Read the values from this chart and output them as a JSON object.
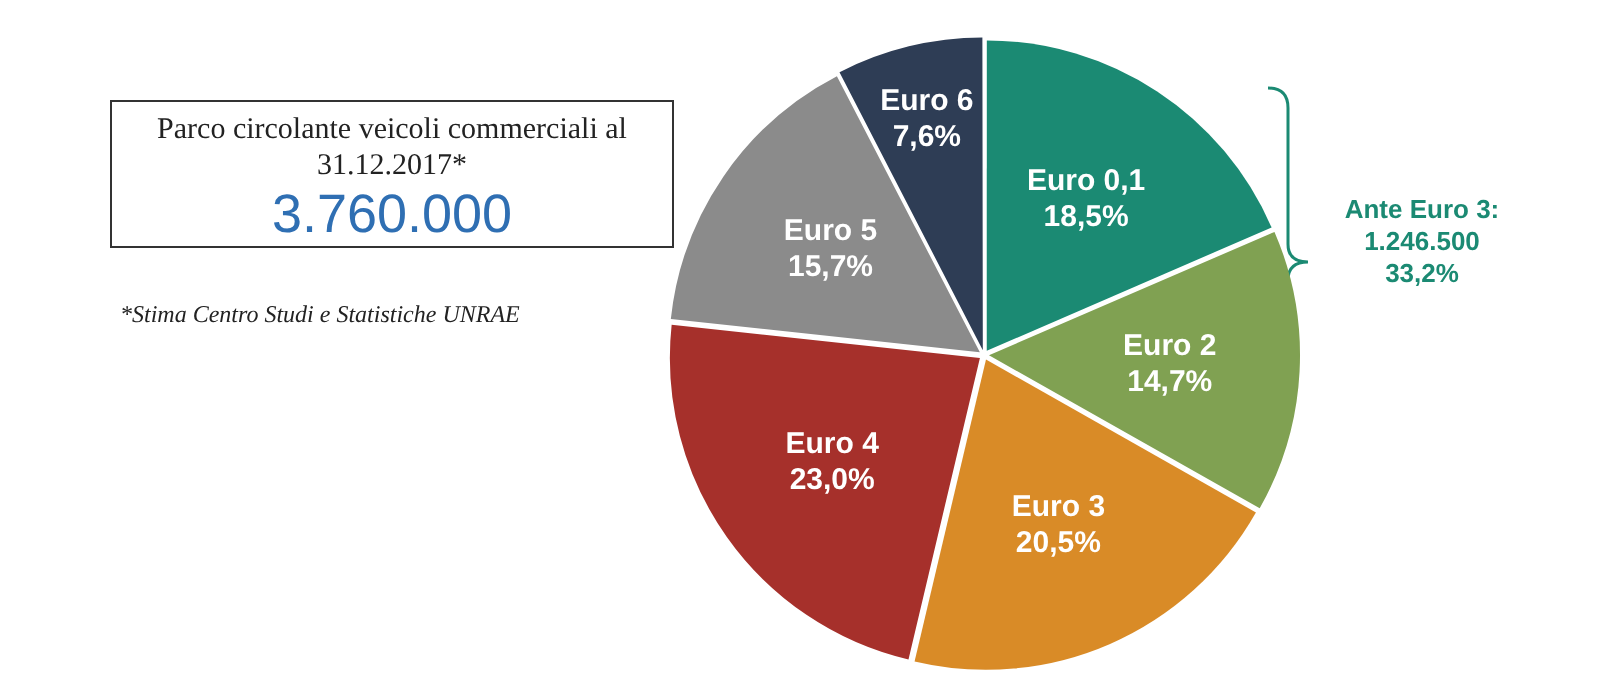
{
  "chart_data": {
    "type": "pie",
    "title": "Parco circolante veicoli commerciali al 31.12.2017*",
    "subtitle": "3.760.000",
    "categories": [
      "Euro 0,1",
      "Euro 2",
      "Euro 3",
      "Euro 4",
      "Euro 5",
      "Euro 6"
    ],
    "values": [
      18.5,
      14.7,
      20.5,
      23.0,
      15.7,
      7.6
    ],
    "value_labels": [
      "18,5%",
      "14,7%",
      "20,5%",
      "23,0%",
      "15,7%",
      "7,6%"
    ],
    "colors": [
      "#1b8a73",
      "#80a152",
      "#d98b27",
      "#a6302b",
      "#8b8b8b",
      "#2e3d55"
    ],
    "annotations": [
      "*Stima Centro Studi e Statistiche UNRAE",
      "Ante Euro 3:\n1.246.500\n33,2%"
    ],
    "legend": false
  }
}
